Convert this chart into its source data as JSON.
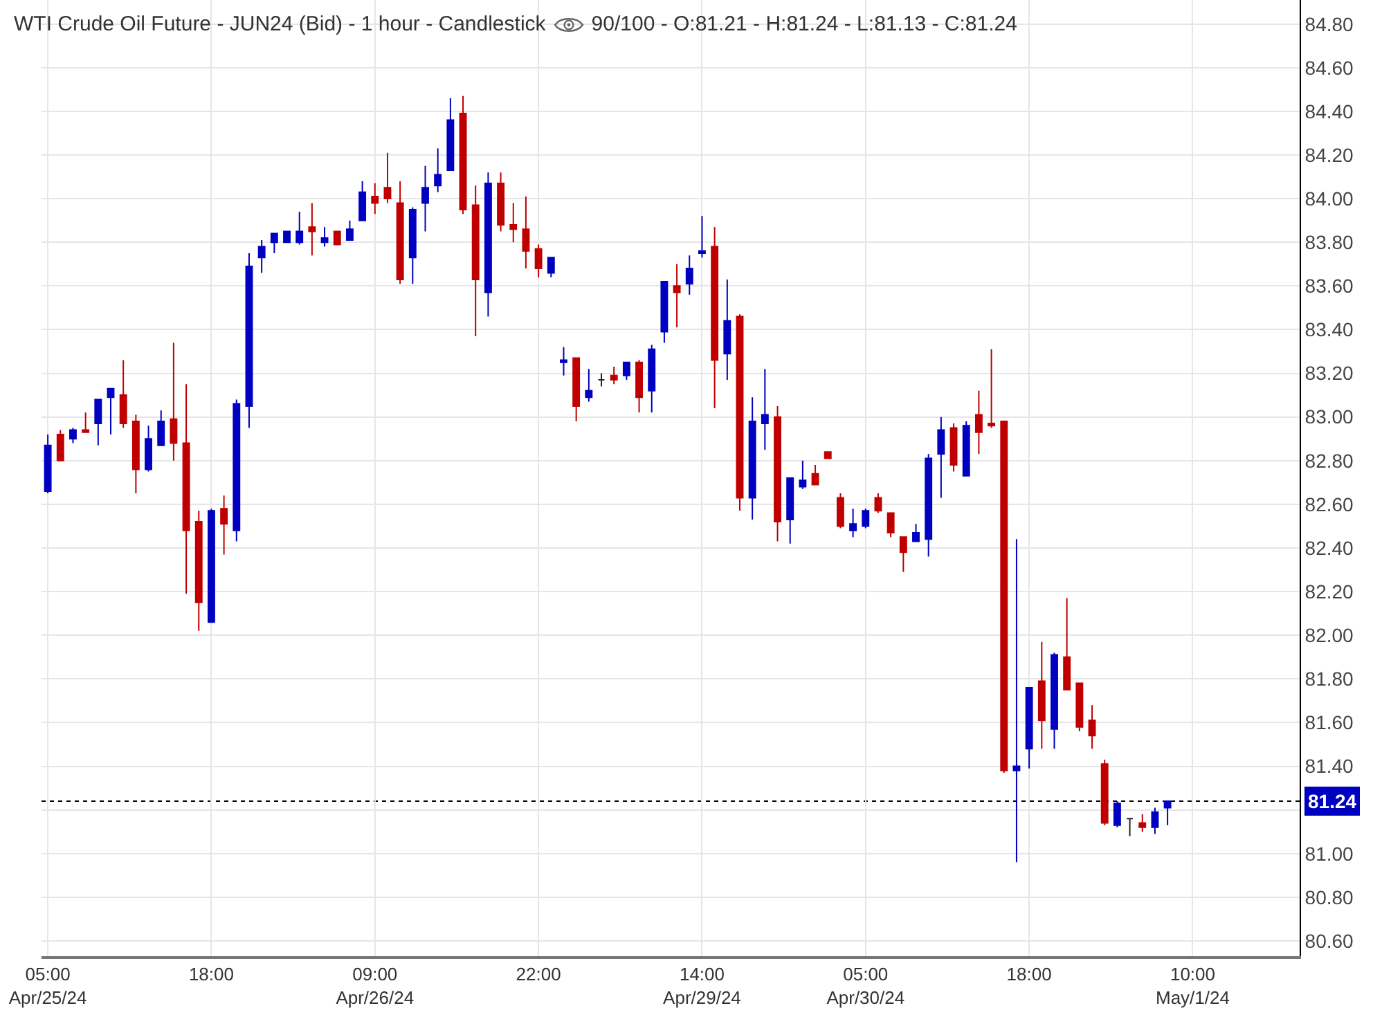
{
  "chart_data": {
    "type": "candlestick",
    "title": "WTI Crude Oil Future - JUN24 (Bid) - 1 hour - Candlestick",
    "subtitle": "90/100 - O:81.21 - H:81.24 - L:81.13 - C:81.24",
    "categories": [
      "05:00\nApr/25/24",
      null,
      null,
      null,
      null,
      null,
      null,
      null,
      null,
      null,
      null,
      null,
      null,
      "18:00",
      null,
      null,
      null,
      null,
      null,
      null,
      null,
      null,
      null,
      null,
      null,
      null,
      "09:00\nApr/26/24",
      null,
      null,
      null,
      null,
      null,
      null,
      null,
      null,
      null,
      null,
      null,
      null,
      "22:00",
      null,
      null,
      null,
      null,
      null,
      null,
      null,
      null,
      null,
      null,
      null,
      null,
      "14:00\nApr/29/24",
      null,
      null,
      null,
      null,
      null,
      null,
      null,
      null,
      null,
      null,
      null,
      null,
      "05:00\nApr/30/24",
      null,
      null,
      null,
      null,
      null,
      null,
      null,
      null,
      null,
      null,
      null,
      null,
      "18:00",
      null,
      null,
      null,
      null,
      null,
      null,
      null,
      null,
      null,
      null,
      null,
      null,
      "10:00\nMay/1/24",
      null,
      null,
      null,
      null,
      null,
      null,
      null,
      null
    ],
    "ohlc": [
      [
        82.66,
        82.92,
        82.65,
        82.87
      ],
      [
        82.92,
        82.94,
        82.8,
        82.8
      ],
      [
        82.9,
        82.95,
        82.88,
        82.94
      ],
      [
        82.94,
        83.02,
        82.93,
        82.93
      ],
      [
        82.97,
        83.08,
        82.87,
        83.08
      ],
      [
        83.09,
        83.13,
        82.92,
        83.13
      ],
      [
        83.1,
        83.26,
        82.95,
        82.97
      ],
      [
        82.98,
        83.01,
        82.65,
        82.76
      ],
      [
        82.76,
        82.96,
        82.75,
        82.9
      ],
      [
        82.87,
        83.03,
        82.87,
        82.98
      ],
      [
        82.99,
        83.34,
        82.8,
        82.88
      ],
      [
        82.88,
        83.15,
        82.19,
        82.48
      ],
      [
        82.52,
        82.57,
        82.02,
        82.15
      ],
      [
        82.06,
        82.58,
        82.06,
        82.57
      ],
      [
        82.58,
        82.64,
        82.37,
        82.51
      ],
      [
        82.48,
        83.08,
        82.43,
        83.06
      ],
      [
        83.05,
        83.75,
        82.95,
        83.69
      ],
      [
        83.73,
        83.81,
        83.66,
        83.78
      ],
      [
        83.8,
        83.84,
        83.75,
        83.84
      ],
      [
        83.8,
        83.85,
        83.8,
        83.85
      ],
      [
        83.8,
        83.94,
        83.79,
        83.85
      ],
      [
        83.87,
        83.98,
        83.74,
        83.85
      ],
      [
        83.8,
        83.87,
        83.78,
        83.82
      ],
      [
        83.85,
        83.85,
        83.79,
        83.79
      ],
      [
        83.81,
        83.9,
        83.81,
        83.86
      ],
      [
        83.9,
        84.08,
        83.9,
        84.03
      ],
      [
        84.01,
        84.07,
        83.93,
        83.98
      ],
      [
        84.05,
        84.21,
        83.98,
        84.0
      ],
      [
        83.98,
        84.08,
        83.61,
        83.63
      ],
      [
        83.73,
        83.96,
        83.61,
        83.95
      ],
      [
        83.98,
        84.15,
        83.85,
        84.05
      ],
      [
        84.06,
        84.23,
        84.03,
        84.11
      ],
      [
        84.13,
        84.46,
        84.13,
        84.36
      ],
      [
        84.39,
        84.47,
        83.93,
        83.95
      ],
      [
        83.97,
        84.06,
        83.37,
        83.63
      ],
      [
        83.57,
        84.12,
        83.46,
        84.07
      ],
      [
        84.07,
        84.12,
        83.85,
        83.88
      ],
      [
        83.88,
        83.98,
        83.8,
        83.86
      ],
      [
        83.86,
        84.01,
        83.68,
        83.76
      ],
      [
        83.77,
        83.79,
        83.64,
        83.68
      ],
      [
        83.66,
        83.73,
        83.64,
        83.73
      ],
      [
        83.25,
        83.32,
        83.19,
        83.26
      ],
      [
        83.27,
        83.27,
        82.98,
        83.05
      ],
      [
        83.09,
        83.22,
        83.07,
        83.12
      ],
      [
        83.17,
        83.2,
        83.14,
        83.17
      ],
      [
        83.19,
        83.23,
        83.15,
        83.17
      ],
      [
        83.19,
        83.25,
        83.17,
        83.25
      ],
      [
        83.25,
        83.26,
        83.02,
        83.09
      ],
      [
        83.12,
        83.33,
        83.02,
        83.31
      ],
      [
        83.39,
        83.62,
        83.34,
        83.62
      ],
      [
        83.6,
        83.7,
        83.41,
        83.57
      ],
      [
        83.61,
        83.74,
        83.56,
        83.68
      ],
      [
        83.75,
        83.92,
        83.73,
        83.76
      ],
      [
        83.78,
        83.87,
        83.04,
        83.26
      ],
      [
        83.29,
        83.63,
        83.17,
        83.44
      ],
      [
        83.46,
        83.47,
        82.57,
        82.63
      ],
      [
        82.63,
        83.09,
        82.53,
        82.98
      ],
      [
        82.97,
        83.22,
        82.85,
        83.01
      ],
      [
        83.0,
        83.05,
        82.43,
        82.52
      ],
      [
        82.53,
        82.72,
        82.42,
        82.72
      ],
      [
        82.68,
        82.8,
        82.67,
        82.71
      ],
      [
        82.74,
        82.78,
        82.69,
        82.69
      ],
      [
        82.84,
        82.84,
        82.81,
        82.81
      ],
      [
        82.63,
        82.65,
        82.49,
        82.5
      ],
      [
        82.48,
        82.58,
        82.45,
        82.51
      ],
      [
        82.5,
        82.58,
        82.49,
        82.57
      ],
      [
        82.63,
        82.65,
        82.56,
        82.57
      ],
      [
        82.56,
        82.56,
        82.45,
        82.47
      ],
      [
        82.45,
        82.45,
        82.29,
        82.38
      ],
      [
        82.43,
        82.51,
        82.43,
        82.47
      ],
      [
        82.44,
        82.83,
        82.36,
        82.81
      ],
      [
        82.83,
        83.0,
        82.63,
        82.94
      ],
      [
        82.95,
        82.97,
        82.75,
        82.78
      ],
      [
        82.73,
        82.98,
        82.73,
        82.96
      ],
      [
        83.01,
        83.12,
        82.83,
        82.93
      ],
      [
        82.97,
        83.31,
        82.95,
        82.96
      ],
      [
        82.98,
        82.98,
        81.37,
        81.38
      ],
      [
        81.38,
        82.44,
        80.96,
        81.4
      ],
      [
        81.48,
        81.76,
        81.39,
        81.76
      ],
      [
        81.79,
        81.97,
        81.48,
        81.61
      ],
      [
        81.57,
        81.92,
        81.48,
        81.91
      ],
      [
        81.9,
        82.17,
        81.75,
        81.75
      ],
      [
        81.78,
        81.78,
        81.56,
        81.58
      ],
      [
        81.61,
        81.68,
        81.48,
        81.54
      ],
      [
        81.41,
        81.43,
        81.13,
        81.14
      ],
      [
        81.13,
        81.24,
        81.12,
        81.23
      ],
      [
        81.16,
        81.16,
        81.08,
        81.16
      ],
      [
        81.14,
        81.18,
        81.1,
        81.12
      ],
      [
        81.12,
        81.21,
        81.09,
        81.19
      ],
      [
        81.21,
        81.24,
        81.13,
        81.24
      ],
      null,
      null,
      null,
      null,
      null,
      null,
      null,
      null,
      null,
      null
    ],
    "colors": [
      "#0000c0",
      "#c00000",
      "#0000c0",
      "#c00000",
      "#0000c0",
      "#0000c0",
      "#c00000",
      "#c00000",
      "#0000c0",
      "#0000c0",
      "#c00000",
      "#c00000",
      "#c00000",
      "#0000c0",
      "#c00000",
      "#0000c0",
      "#0000c0",
      "#0000c0",
      "#0000c0",
      "#0000c0",
      "#0000c0",
      "#c00000",
      "#0000c0",
      "#c00000",
      "#0000c0",
      "#0000c0",
      "#c00000",
      "#c00000",
      "#c00000",
      "#0000c0",
      "#0000c0",
      "#0000c0",
      "#0000c0",
      "#c00000",
      "#c00000",
      "#0000c0",
      "#c00000",
      "#c00000",
      "#c00000",
      "#c00000",
      "#0000c0",
      "#0000c0",
      "#c00000",
      "#0000c0",
      "#222222",
      "#c00000",
      "#0000c0",
      "#c00000",
      "#0000c0",
      "#0000c0",
      "#c00000",
      "#0000c0",
      "#0000c0",
      "#c00000",
      "#0000c0",
      "#c00000",
      "#0000c0",
      "#0000c0",
      "#c00000",
      "#0000c0",
      "#0000c0",
      "#c00000",
      "#c00000",
      "#c00000",
      "#0000c0",
      "#0000c0",
      "#c00000",
      "#c00000",
      "#c00000",
      "#0000c0",
      "#0000c0",
      "#0000c0",
      "#c00000",
      "#0000c0",
      "#c00000",
      "#c00000",
      "#c00000",
      "#0000c0",
      "#0000c0",
      "#c00000",
      "#0000c0",
      "#c00000",
      "#c00000",
      "#c00000",
      "#c00000",
      "#0000c0",
      "#222222",
      "#c00000",
      "#0000c0",
      "#0000c0",
      null,
      null,
      null,
      null,
      null,
      null,
      null,
      null,
      null,
      null
    ],
    "ylim": [
      80.53,
      84.91
    ],
    "yticks": [
      {
        "value": 80.6,
        "label": "80.60"
      },
      {
        "value": 80.8,
        "label": "80.80"
      },
      {
        "value": 81.0,
        "label": "81.00"
      },
      {
        "value": 81.2,
        "label": null
      },
      {
        "value": 81.4,
        "label": "81.40"
      },
      {
        "value": 81.6,
        "label": "81.60"
      },
      {
        "value": 81.8,
        "label": "81.80"
      },
      {
        "value": 82.0,
        "label": "82.00"
      },
      {
        "value": 82.2,
        "label": "82.20"
      },
      {
        "value": 82.4,
        "label": "82.40"
      },
      {
        "value": 82.6,
        "label": "82.60"
      },
      {
        "value": 82.8,
        "label": "82.80"
      },
      {
        "value": 83.0,
        "label": "83.00"
      },
      {
        "value": 83.2,
        "label": "83.20"
      },
      {
        "value": 83.4,
        "label": "83.40"
      },
      {
        "value": 83.6,
        "label": "83.60"
      },
      {
        "value": 83.8,
        "label": "83.80"
      },
      {
        "value": 84.0,
        "label": "84.00"
      },
      {
        "value": 84.2,
        "label": "84.20"
      },
      {
        "value": 84.4,
        "label": "84.40"
      },
      {
        "value": 84.6,
        "label": "84.60"
      },
      {
        "value": 84.8,
        "label": "84.80"
      }
    ],
    "grid": true,
    "ref_lines": [
      {
        "axis": "y",
        "value": 81.24,
        "label": "81.24",
        "color": "#000000",
        "line_style": "dashed"
      }
    ]
  }
}
